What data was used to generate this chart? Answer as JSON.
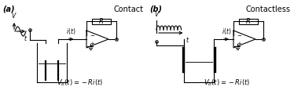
{
  "bg_color": "#ffffff",
  "line_color": "#000000",
  "fig_width": 3.74,
  "fig_height": 1.2,
  "dpi": 100,
  "panel_a": {
    "label": "(a)",
    "title": "Contact",
    "equation": "$V_o(t) = - Ri(t)$"
  },
  "panel_b": {
    "label": "(b)",
    "title": "Contactless",
    "equation": "$V_o(t) = - Ri(t)$"
  }
}
